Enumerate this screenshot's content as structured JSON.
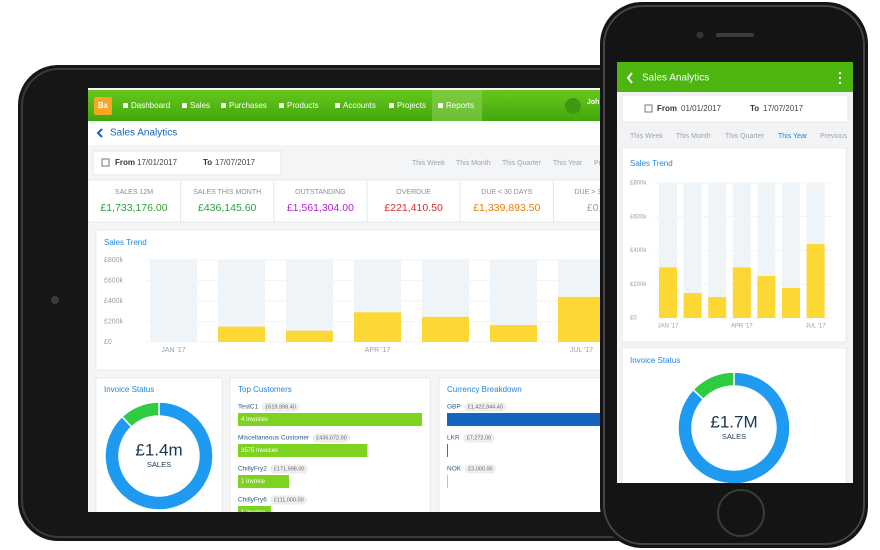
{
  "tablet": {
    "logo": "Bx",
    "nav": [
      {
        "label": "Dashboard"
      },
      {
        "label": "Sales"
      },
      {
        "label": "Purchases"
      },
      {
        "label": "Products"
      },
      {
        "label": "Accounts"
      },
      {
        "label": "Projects"
      },
      {
        "label": "Reports",
        "active": true
      }
    ],
    "user": "John",
    "title": "Sales Analytics",
    "from_label": "From",
    "from": "17/01/2017",
    "to_label": "To",
    "to": "17/07/2017",
    "periods": [
      "This Week",
      "This Month",
      "This Quarter",
      "This Year",
      "Previous"
    ],
    "kpis": [
      {
        "label": "SALES 12M",
        "value": "£1,733,176.00",
        "color": "#2e9e3a"
      },
      {
        "label": "SALES THIS MONTH",
        "value": "£436,145.60",
        "color": "#2e9e3a"
      },
      {
        "label": "OUTSTANDING",
        "value": "£1,561,304.00",
        "color": "#b21fd0"
      },
      {
        "label": "OVERDUE",
        "value": "£221,410.50",
        "color": "#d32f2f"
      },
      {
        "label": "DUE < 30 DAYS",
        "value": "£1,339,893.50",
        "color": "#ef7d00"
      },
      {
        "label": "DUE > 30 DAYS",
        "value": "£0.00",
        "color": "#9e9e9e"
      }
    ],
    "sales_trend": {
      "title": "Sales Trend",
      "categories": [
        "JAN '17",
        null,
        null,
        "APR '17",
        null,
        null,
        "JUL '17"
      ],
      "values": [
        0,
        150000,
        110000,
        290000,
        245000,
        165000,
        440000
      ],
      "color": "#fdd835",
      "ylim": [
        0,
        800000
      ],
      "yticks": [
        {
          "value": 0,
          "label": "£0"
        },
        {
          "value": 200000,
          "label": "£200k"
        },
        {
          "value": 400000,
          "label": "£400k"
        },
        {
          "value": 600000,
          "label": "£600k"
        },
        {
          "value": 800000,
          "label": "£800k"
        }
      ]
    },
    "invoice_status": {
      "title": "Invoice Status",
      "center_value": "£1.4m",
      "center_label": "SALES",
      "values": [
        88,
        12
      ],
      "colors": [
        "#1e9bf0",
        "#2ecc40"
      ]
    },
    "top_customers": {
      "title": "Top Customers",
      "color": "#7ed321",
      "rows": [
        {
          "name": "TestC1",
          "amount": 619998.4,
          "amount_label": "£619,998.40",
          "invoices": "4 Invoices"
        },
        {
          "name": "Miscellaneous Customer",
          "amount": 436072,
          "amount_label": "£436,072.00",
          "invoices": "3575 Invoices"
        },
        {
          "name": "ChillyFry2",
          "amount": 171998,
          "amount_label": "£171,998.00",
          "invoices": "1 Invoice"
        },
        {
          "name": "ChillyFry6",
          "amount": 111000,
          "amount_label": "£111,000.00",
          "invoices": "1 Invoice"
        }
      ]
    },
    "currency_breakdown": {
      "title": "Currency Breakdown",
      "color": "#1565c0",
      "rows": [
        {
          "name": "GBP",
          "amount": 1422944.4,
          "amount_label": "£1,422,944.40"
        },
        {
          "name": "LKR",
          "amount": 7272,
          "amount_label": "£7,272.00"
        },
        {
          "name": "NOK",
          "amount": 3000,
          "amount_label": "£3,000.00"
        }
      ]
    }
  },
  "phone": {
    "title": "Sales Analytics",
    "from_label": "From",
    "from": "01/01/2017",
    "to_label": "To",
    "to": "17/07/2017",
    "periods": [
      {
        "label": "This Week"
      },
      {
        "label": "This Month"
      },
      {
        "label": "This Quarter"
      },
      {
        "label": "This Year",
        "active": true
      },
      {
        "label": "Previous"
      }
    ],
    "sales_trend": {
      "title": "Sales Trend",
      "categories": [
        "JAN '17",
        null,
        null,
        "APR '17",
        null,
        null,
        "JUL '17"
      ],
      "values": [
        300000,
        148000,
        124000,
        300000,
        249000,
        178000,
        438000
      ],
      "color": "#fdd835",
      "ylim": [
        0,
        800000
      ],
      "yticks": [
        {
          "value": 0,
          "label": "£0"
        },
        {
          "value": 200000,
          "label": "£200k"
        },
        {
          "value": 400000,
          "label": "£400k"
        },
        {
          "value": 600000,
          "label": "£600k"
        },
        {
          "value": 800000,
          "label": "£800k"
        }
      ]
    },
    "invoice_status": {
      "title": "Invoice Status",
      "center_value": "£1.7M",
      "center_label": "SALES",
      "values": [
        87,
        13
      ],
      "colors": [
        "#1e9bf0",
        "#2ecc40"
      ]
    }
  }
}
